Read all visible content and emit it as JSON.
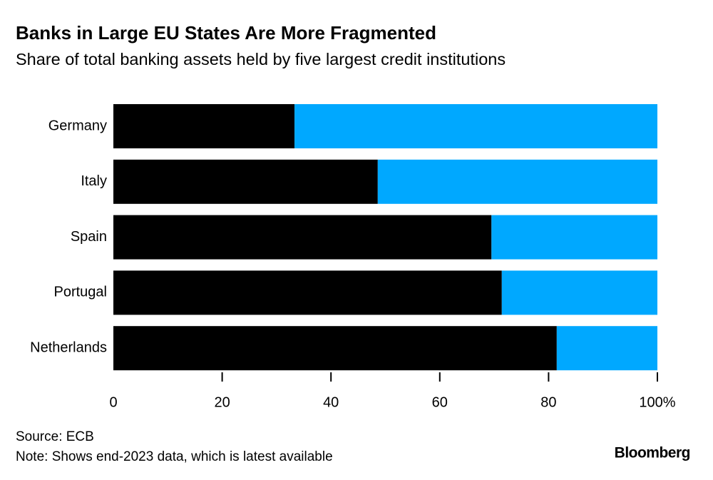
{
  "chart_data": {
    "type": "stacked-barh",
    "title": "Banks in Large EU States Are More Fragmented",
    "subtitle": "Share of total banking assets held by five largest credit institutions",
    "categories": [
      "Germany",
      "Italy",
      "Spain",
      "Portugal",
      "Netherlands"
    ],
    "series": [
      {
        "color": "#000000",
        "values": [
          33.3,
          48.6,
          69.5,
          71.4,
          81.5
        ]
      },
      {
        "color": "#00a8ff",
        "values": [
          66.7,
          51.4,
          30.5,
          28.6,
          18.5
        ]
      }
    ],
    "xlim": [
      0,
      100
    ],
    "xticks": [
      0,
      20,
      40,
      60,
      80,
      {
        "value": 100,
        "label": "100%"
      }
    ],
    "grid": false
  },
  "footer": {
    "source": "Source: ECB",
    "note": "Note: Shows end-2023 data, which is latest available",
    "brand": "Bloomberg"
  }
}
